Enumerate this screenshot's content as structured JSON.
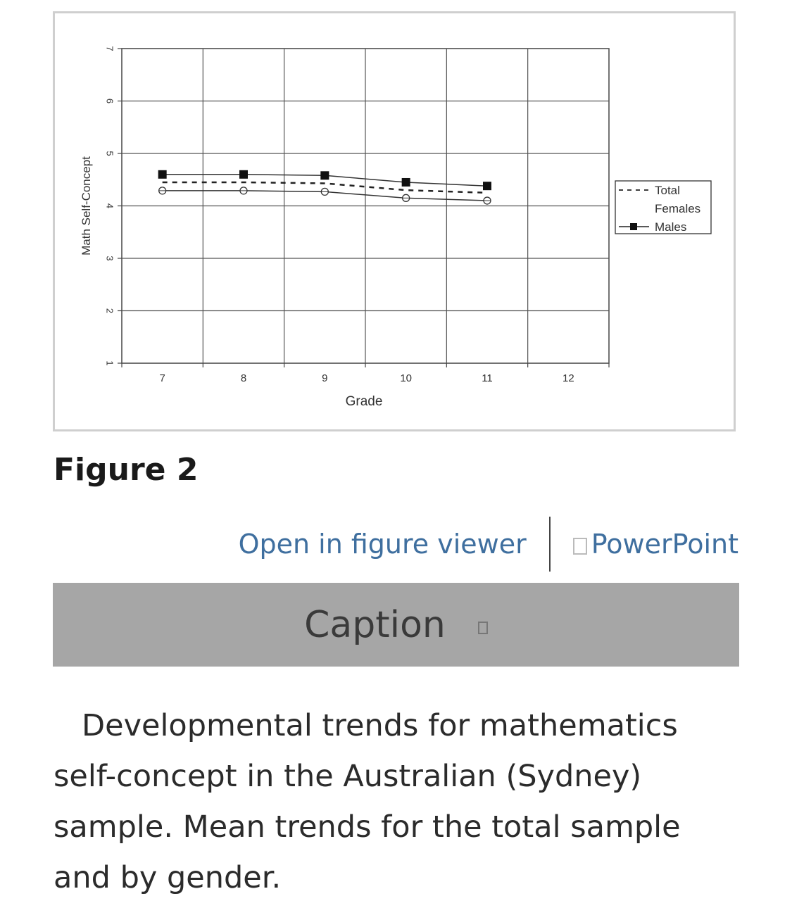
{
  "figure": {
    "label": "Figure 2",
    "links": {
      "open_viewer": "Open in figure viewer",
      "powerpoint": "PowerPoint",
      "powerpoint_icon": "box-icon"
    },
    "caption_heading": "Caption",
    "caption_toggle_icon": "box-icon",
    "caption_text": "Developmental trends for mathematics self-concept in the Australian (Sydney) sample. Mean trends for the total sample and by gender."
  },
  "chart_data": {
    "type": "line",
    "x": [
      7,
      8,
      9,
      10,
      11
    ],
    "xticks": [
      "7",
      "8",
      "9",
      "10",
      "11",
      "12"
    ],
    "yticks": [
      "1",
      "2",
      "3",
      "4",
      "5",
      "6",
      "7"
    ],
    "xlim": [
      6.5,
      12.5
    ],
    "ylim": [
      1,
      7
    ],
    "xlabel": "Grade",
    "ylabel": "Math Self-Concept",
    "grid": true,
    "legend_position": "right",
    "series": [
      {
        "name": "Total",
        "values": [
          4.45,
          4.45,
          4.43,
          4.3,
          4.25
        ],
        "style": "dashed",
        "marker": "none"
      },
      {
        "name": "Females",
        "values": [
          4.29,
          4.29,
          4.27,
          4.15,
          4.1
        ],
        "style": "solid",
        "marker": "open-circle"
      },
      {
        "name": "Males",
        "values": [
          4.6,
          4.6,
          4.58,
          4.45,
          4.38
        ],
        "style": "solid",
        "marker": "filled-square"
      }
    ]
  }
}
